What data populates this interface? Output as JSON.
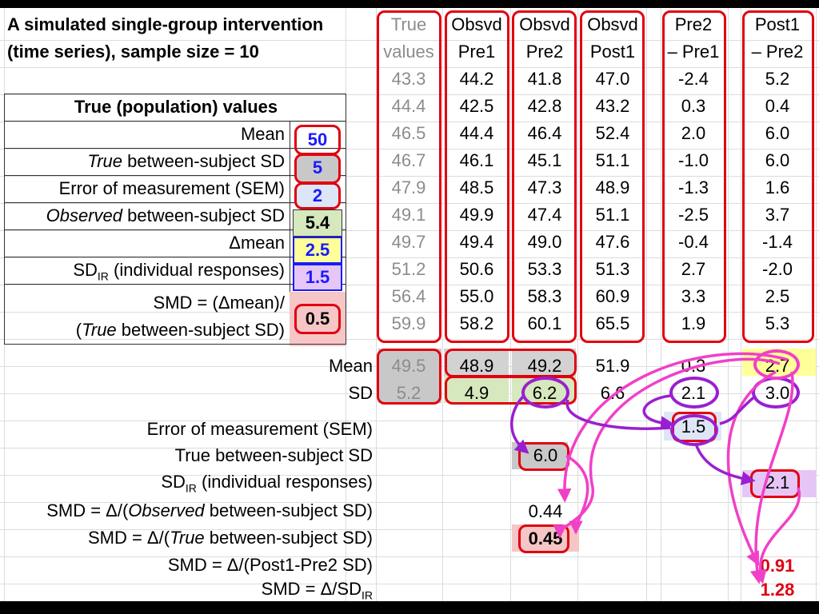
{
  "title": {
    "line1": "A simulated single-group intervention",
    "line2": "(time series), sample size = 10"
  },
  "true_values_table": {
    "heading": "True (population) values",
    "rows": [
      {
        "label": "Mean",
        "value": "50"
      },
      {
        "label_italic": "True",
        "label": " between-subject SD",
        "value": "5"
      },
      {
        "label": "Error of measurement (SEM)",
        "value": "2"
      },
      {
        "label_italic": "Observed",
        "label": " between-subject SD",
        "value": "5.4"
      },
      {
        "label": "Δmean",
        "value": "2.5"
      },
      {
        "label": "SD",
        "label_sub": "IR",
        "label_rest": " (individual responses)",
        "value": "1.5"
      },
      {
        "label1": "SMD = (Δmean)/",
        "label2_open": "(",
        "label2_italic": "True",
        "label2_rest": " between-subject SD)",
        "value": "0.5"
      }
    ]
  },
  "columns": [
    {
      "line1": "True",
      "line2": "values"
    },
    {
      "line1": "Obsvd",
      "line2": "Pre1"
    },
    {
      "line1": "Obsvd",
      "line2": "Pre2"
    },
    {
      "line1": "Obsvd",
      "line2": "Post1"
    },
    {
      "line1": "Pre2",
      "line2": "– Pre1"
    },
    {
      "line1": "Post1",
      "line2": "– Pre2"
    }
  ],
  "data_rows": [
    [
      "43.3",
      "44.2",
      "41.8",
      "47.0",
      "-2.4",
      "5.2"
    ],
    [
      "44.4",
      "42.5",
      "42.8",
      "43.2",
      "0.3",
      "0.4"
    ],
    [
      "46.5",
      "44.4",
      "46.4",
      "52.4",
      "2.0",
      "6.0"
    ],
    [
      "46.7",
      "46.1",
      "45.1",
      "51.1",
      "-1.0",
      "6.0"
    ],
    [
      "47.9",
      "48.5",
      "47.3",
      "48.9",
      "-1.3",
      "1.6"
    ],
    [
      "49.1",
      "49.9",
      "47.4",
      "51.1",
      "-2.5",
      "3.7"
    ],
    [
      "49.7",
      "49.4",
      "49.0",
      "47.6",
      "-0.4",
      "-1.4"
    ],
    [
      "51.2",
      "50.6",
      "53.3",
      "51.3",
      "2.7",
      "-2.0"
    ],
    [
      "56.4",
      "55.0",
      "58.3",
      "60.9",
      "3.3",
      "2.5"
    ],
    [
      "59.9",
      "58.2",
      "60.1",
      "65.5",
      "1.9",
      "5.3"
    ]
  ],
  "summary": {
    "mean_label": "Mean",
    "sd_label": "SD",
    "mean": [
      "49.5",
      "48.9",
      "49.2",
      "51.9",
      "0.3",
      "2.7"
    ],
    "sd": [
      "5.2",
      "4.9",
      "6.2",
      "6.6",
      "2.1",
      "3.0"
    ]
  },
  "derived": {
    "sem_label": "Error of measurement (SEM)",
    "sem_value": "1.5",
    "true_sd_label": "True between-subject SD",
    "true_sd_value": "6.0",
    "sdir_label": "SD",
    "sdir_sub": "IR",
    "sdir_rest": " (individual responses)",
    "sdir_value": "2.1",
    "smd_obs_prefix": "SMD = Δ/(",
    "smd_obs_italic": "Observed",
    "smd_obs_suffix": " between-subject SD)",
    "smd_obs_value": "0.44",
    "smd_true_prefix": "SMD = Δ/(",
    "smd_true_italic": "True",
    "smd_true_suffix": " between-subject SD)",
    "smd_true_value": "0.45",
    "smd_post_label": "SMD = Δ/(Post1-Pre2 SD)",
    "smd_post_value": "0.91",
    "smd_ir_label": "SMD = Δ/SD",
    "smd_ir_sub": "IR",
    "smd_ir_value": "1.28"
  },
  "colors": {
    "red_outline": "#e00010",
    "purple_arrow": "#9a1fd0",
    "pink_arrow": "#f040c8",
    "blue_value": "#1a1aff",
    "yellow_fill": "#ffff99",
    "green_fill": "#d6e8bd",
    "grey_fill": "#c8c8c8",
    "pink_fill": "#f6c6c6",
    "lightblue_fill": "#dde6f6",
    "lavender_fill": "#e6c6f6"
  }
}
